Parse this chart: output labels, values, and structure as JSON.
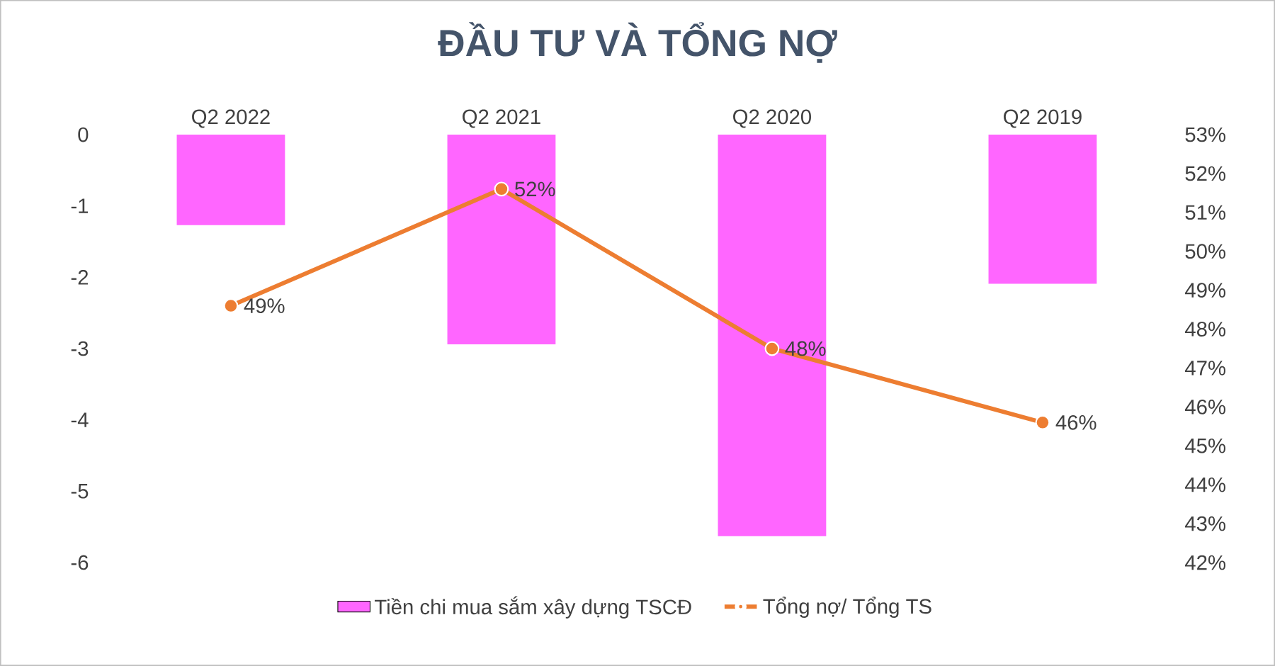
{
  "chart_data": {
    "type": "bar",
    "title": "ĐẦU TƯ VÀ TỔNG NỢ",
    "categories": [
      "Q2 2022",
      "Q2 2021",
      "Q2 2020",
      "Q2 2019"
    ],
    "series": [
      {
        "name": "Tiền chi mua sắm xây dựng TSCĐ",
        "color": "#ff66ff",
        "values": [
          -1.27,
          -2.94,
          -5.63,
          -2.09
        ]
      },
      {
        "name": "Tổng nợ/ Tổng TS",
        "type": "line",
        "axis": "y2",
        "color": "#ed7d31",
        "marker": "circle",
        "values": [
          48.6,
          51.6,
          47.5,
          45.6
        ],
        "value_labels": [
          "49%",
          "52%",
          "48%",
          "46%"
        ]
      }
    ],
    "ylim": [
      -6,
      0
    ],
    "yticks": [
      -6,
      -5,
      -4,
      -3,
      -2,
      -1,
      0
    ],
    "y2lim": [
      42,
      53
    ],
    "y2ticks": [
      {
        "value": 42,
        "label": "42%"
      },
      {
        "value": 43,
        "label": "43%"
      },
      {
        "value": 44,
        "label": "44%"
      },
      {
        "value": 45,
        "label": "45%"
      },
      {
        "value": 46,
        "label": "46%"
      },
      {
        "value": 47,
        "label": "47%"
      },
      {
        "value": 48,
        "label": "48%"
      },
      {
        "value": 49,
        "label": "49%"
      },
      {
        "value": 50,
        "label": "50%"
      },
      {
        "value": 51,
        "label": "51%"
      },
      {
        "value": 52,
        "label": "52%"
      },
      {
        "value": 53,
        "label": "53%"
      }
    ],
    "grid": false,
    "legend": "bottom"
  }
}
